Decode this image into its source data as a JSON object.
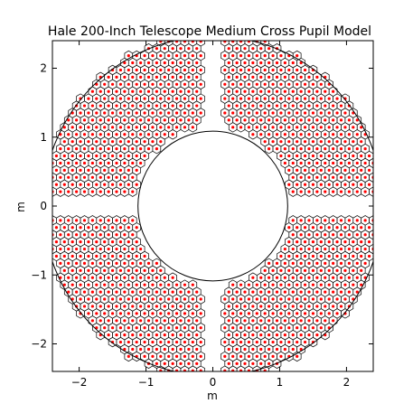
{
  "chart_data": {
    "type": "scatter",
    "title": "Hale 200-Inch Telescope Medium Cross Pupil Model",
    "xlabel": "m",
    "ylabel": "m",
    "xlim": [
      -2.4,
      2.4
    ],
    "ylim": [
      -2.4,
      2.4
    ],
    "xticks": [
      -2,
      -1,
      0,
      1,
      2
    ],
    "yticks": [
      -2,
      -1,
      0,
      1,
      2
    ],
    "xtick_labels": [
      "−2",
      "−1",
      "0",
      "1",
      "2"
    ],
    "ytick_labels": [
      "−2",
      "−1",
      "0",
      "1",
      "2"
    ],
    "grid": false,
    "pupil": {
      "outer_radius": 2.54,
      "inner_radius": 1.12,
      "cross_arm_halfwidth": 0.155
    },
    "segments": {
      "shape": "hexagon",
      "flat_to_flat": 0.12,
      "marker": "dot",
      "edge_color": "#000000",
      "marker_color": "#ff0000"
    }
  }
}
